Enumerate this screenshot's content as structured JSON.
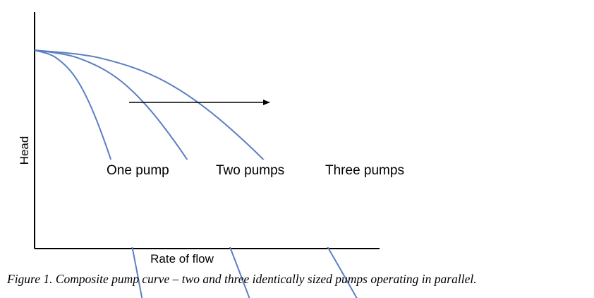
{
  "chart_data": {
    "type": "line",
    "xlabel": "Rate of flow",
    "ylabel": "Head",
    "grid": false,
    "legend": "none",
    "annotation": "arrow pointing right",
    "series": [
      {
        "name": "One pump",
        "color": "#5b7fc4",
        "points": [
          [
            0,
            1.0
          ],
          [
            0.1,
            0.96
          ],
          [
            0.2,
            0.84
          ],
          [
            0.3,
            0.6
          ],
          [
            0.4,
            0.25
          ],
          [
            0.5,
            -0.3
          ]
        ]
      },
      {
        "name": "Two pumps",
        "color": "#5b7fc4",
        "points": [
          [
            0,
            1.0
          ],
          [
            0.2,
            0.96
          ],
          [
            0.4,
            0.84
          ],
          [
            0.6,
            0.6
          ],
          [
            0.8,
            0.25
          ],
          [
            1.0,
            -0.3
          ]
        ]
      },
      {
        "name": "Three pumps",
        "color": "#5b7fc4",
        "points": [
          [
            0,
            1.0
          ],
          [
            0.3,
            0.96
          ],
          [
            0.6,
            0.84
          ],
          [
            0.9,
            0.6
          ],
          [
            1.2,
            0.25
          ],
          [
            1.5,
            -0.3
          ]
        ]
      }
    ]
  },
  "caption": "Figure 1. Composite pump curve – two and three identically  sized pumps operating in parallel."
}
